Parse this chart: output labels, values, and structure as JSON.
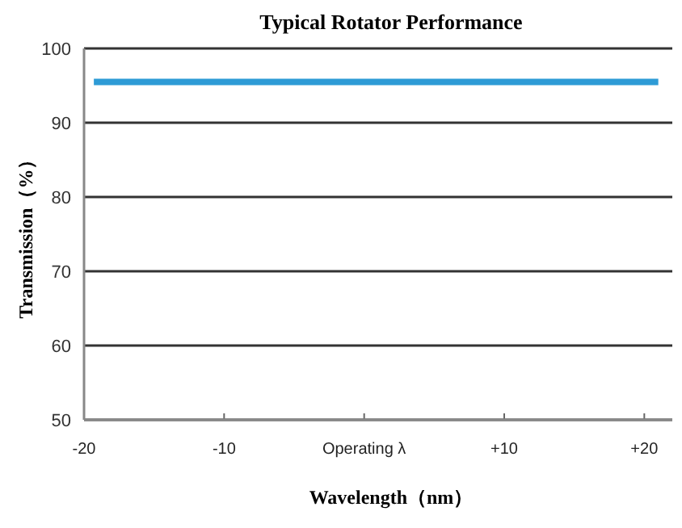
{
  "chart_data": {
    "type": "line",
    "title": "Typical Rotator Performance",
    "xlabel": "Wavelength（nm）",
    "ylabel": "Transmission（%）",
    "x": [
      -19.3,
      21
    ],
    "series": [
      {
        "color": "#2e9bd6",
        "values": [
          95.5,
          95.5
        ]
      }
    ],
    "xlim": [
      -20,
      22
    ],
    "ylim": [
      50,
      100
    ],
    "xticks": [
      {
        "value": -20,
        "label": "-20"
      },
      {
        "value": -10,
        "label": "-10"
      },
      {
        "value": 0,
        "label": "Operating λ"
      },
      {
        "value": 10,
        "label": "+10"
      },
      {
        "value": 20,
        "label": "+20"
      }
    ],
    "yticks": [
      50,
      60,
      70,
      80,
      90,
      100
    ],
    "grid": "y"
  }
}
